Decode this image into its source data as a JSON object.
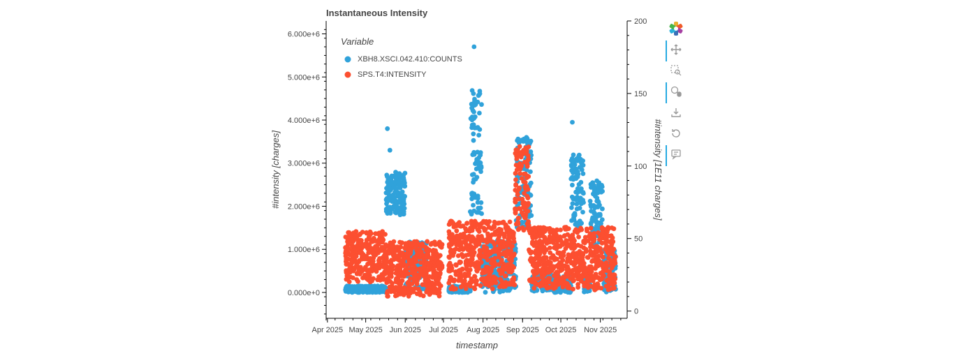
{
  "chart_data": {
    "type": "scatter",
    "title": "Instantaneous Intensity",
    "xlabel": "timestamp",
    "ylabel": "#intensity [charges]",
    "ylabel_right": "#intensity [1E11 charges]",
    "xticks": [
      "Apr 2025",
      "May 2025",
      "Jun 2025",
      "Jul 2025",
      "Aug 2025",
      "Sep 2025",
      "Oct 2025",
      "Nov 2025"
    ],
    "xlim": [
      "2025-03-31",
      "2025-11-22"
    ],
    "ylim": [
      -600000,
      6300000
    ],
    "yticks": [
      "0.000e+0",
      "1.000e+6",
      "2.000e+6",
      "3.000e+6",
      "4.000e+6",
      "5.000e+6",
      "6.000e+6"
    ],
    "ylim_right": [
      -5,
      200
    ],
    "yticks_right": [
      "0",
      "50",
      "100",
      "150",
      "200"
    ],
    "legend": {
      "title": "Variable",
      "position": "top-left"
    },
    "grid": false,
    "series": [
      {
        "name": "XBH8.XSCI.042.410:COUNTS",
        "axis": "left",
        "color": "#30a2da",
        "segments": [
          {
            "start": "2025-04-15",
            "end": "2025-05-17",
            "low": 0,
            "high": 150000
          },
          {
            "start": "2025-05-17",
            "end": "2025-06-01",
            "low": 1800000,
            "high": 2800000
          },
          {
            "start": "2025-06-01",
            "end": "2025-06-18",
            "low": 0,
            "high": 1200000
          },
          {
            "start": "2025-07-05",
            "end": "2025-07-22",
            "low": 0,
            "high": 150000
          },
          {
            "start": "2025-07-22",
            "end": "2025-07-31",
            "low": 1800000,
            "high": 4700000
          },
          {
            "start": "2025-07-31",
            "end": "2025-08-27",
            "low": 0,
            "high": 1200000
          },
          {
            "start": "2025-08-27",
            "end": "2025-09-08",
            "low": 1500000,
            "high": 3600000
          },
          {
            "start": "2025-09-08",
            "end": "2025-10-09",
            "low": 0,
            "high": 400000
          },
          {
            "start": "2025-10-09",
            "end": "2025-10-19",
            "low": 1400000,
            "high": 3200000
          },
          {
            "start": "2025-10-19",
            "end": "2025-10-24",
            "low": 0,
            "high": 500000
          },
          {
            "start": "2025-10-24",
            "end": "2025-11-03",
            "low": 1000000,
            "high": 2600000
          },
          {
            "start": "2025-11-03",
            "end": "2025-11-13",
            "low": 0,
            "high": 1000000
          }
        ],
        "outliers": [
          {
            "x": "2025-05-18",
            "y": 3800000
          },
          {
            "x": "2025-07-25",
            "y": 5700000
          },
          {
            "x": "2025-10-10",
            "y": 3950000
          },
          {
            "x": "2025-05-20",
            "y": 3300000
          }
        ]
      },
      {
        "name": "SPS.T4:INTENSITY",
        "axis": "right",
        "color": "#fc4f30",
        "segments": [
          {
            "start": "2025-04-15",
            "end": "2025-05-17",
            "low": 20,
            "high": 55
          },
          {
            "start": "2025-05-17",
            "end": "2025-06-30",
            "low": 10,
            "high": 48
          },
          {
            "start": "2025-07-05",
            "end": "2025-08-26",
            "low": 15,
            "high": 62
          },
          {
            "start": "2025-08-26",
            "end": "2025-09-06",
            "low": 55,
            "high": 114
          },
          {
            "start": "2025-09-06",
            "end": "2025-10-10",
            "low": 15,
            "high": 58
          },
          {
            "start": "2025-10-10",
            "end": "2025-11-13",
            "low": 14,
            "high": 58
          }
        ]
      }
    ]
  },
  "toolbar": {
    "tools": [
      {
        "name": "bokeh-logo-icon",
        "active": false
      },
      {
        "name": "pan-icon",
        "active": true
      },
      {
        "name": "box-zoom-icon",
        "active": false
      },
      {
        "name": "wheel-zoom-icon",
        "active": true
      },
      {
        "name": "save-icon",
        "active": false
      },
      {
        "name": "reset-icon",
        "active": false
      },
      {
        "name": "hover-icon",
        "active": true
      }
    ]
  }
}
